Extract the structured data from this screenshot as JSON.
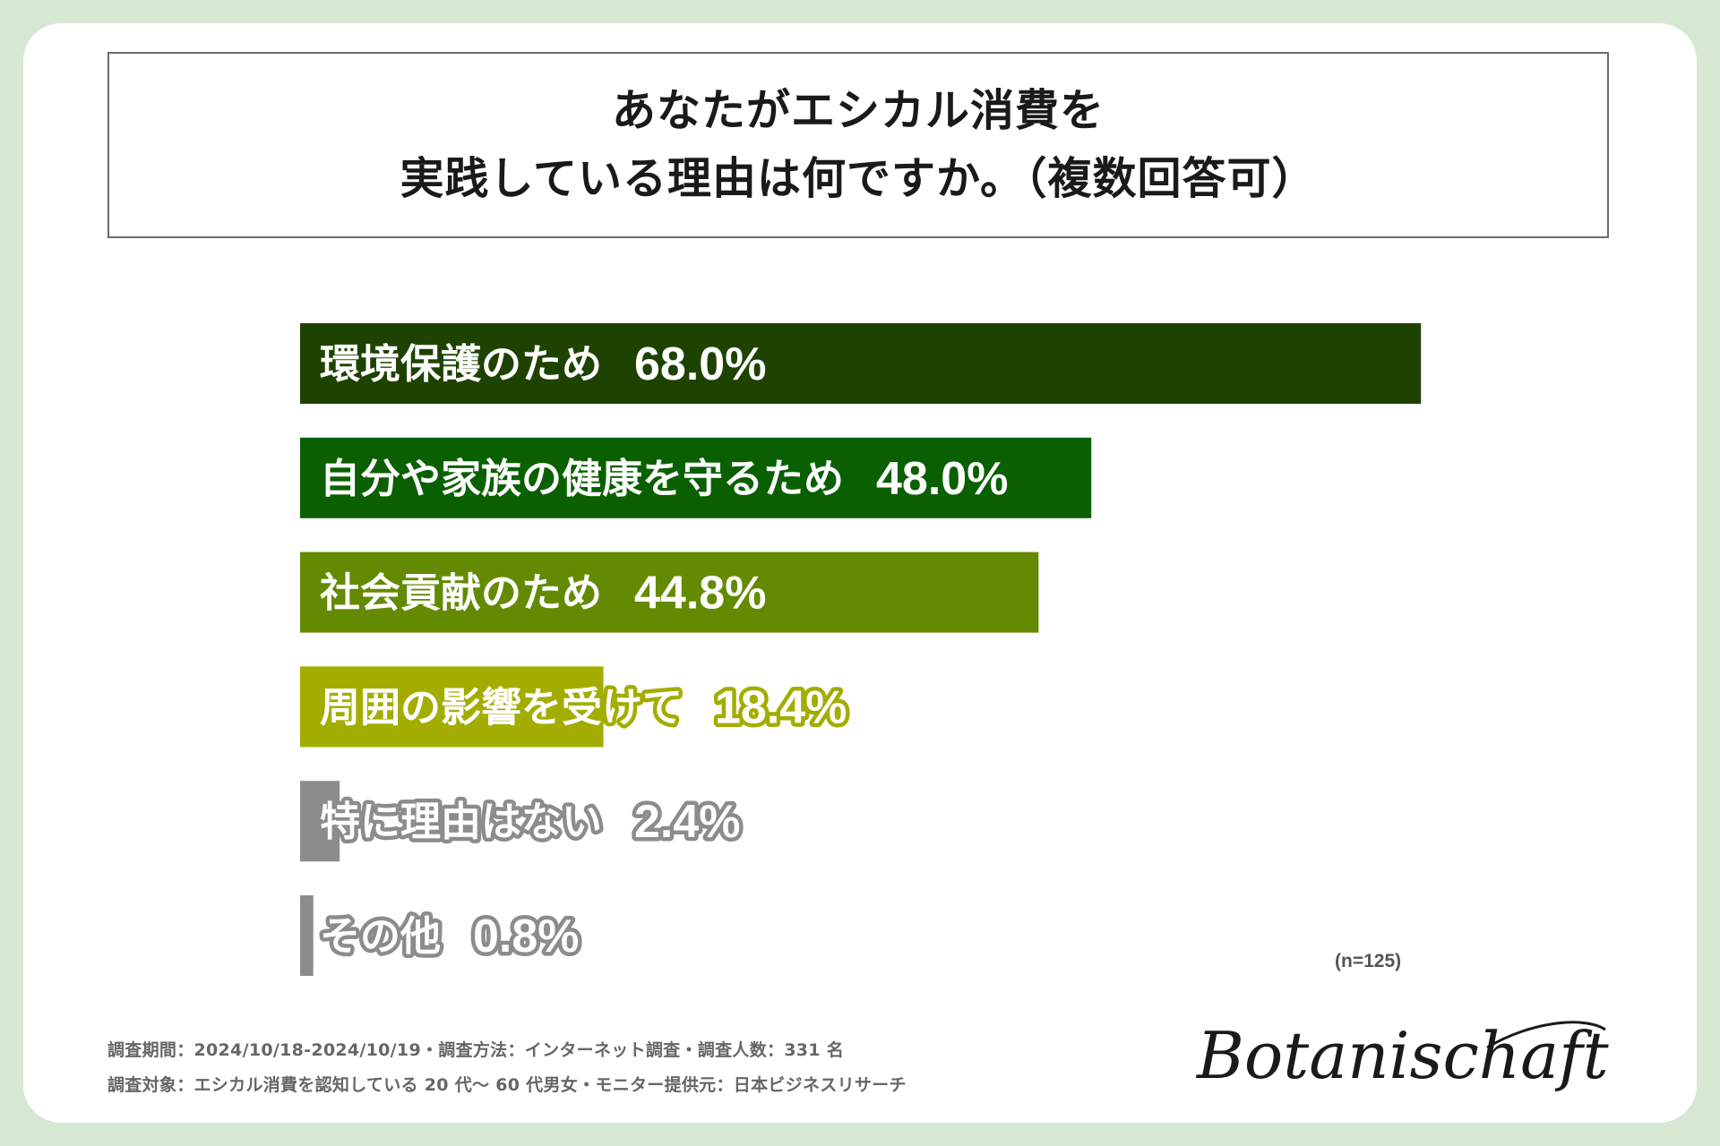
{
  "title_lines": [
    "あなたがエシカル消費を",
    "実践している理由は何ですか。（複数回答可）"
  ],
  "sample_note": "(n=125)",
  "footnotes": [
    "調査期間：2024/10/18-2024/10/19・調査方法：インターネット調査・調査人数：331 名",
    "調査対象：エシカル消費を認知している 20 代〜 60 代男女・モニター提供元：日本ビジネスリサーチ"
  ],
  "logo_text": "Botanischaft",
  "chart_data": {
    "type": "bar",
    "orientation": "horizontal",
    "title": "あなたがエシカル消費を 実践している理由は何ですか。（複数回答可）",
    "xlabel": "",
    "ylabel": "",
    "xlim": [
      0,
      100
    ],
    "grid": false,
    "categories": [
      "環境保護のため",
      "自分や家族の健康を守るため",
      "社会貢献のため",
      "周囲の影響を受けて",
      "特に理由はない",
      "その他"
    ],
    "values": [
      68.0,
      48.0,
      44.8,
      18.4,
      2.4,
      0.8
    ],
    "value_labels": [
      "68.0%",
      "48.0%",
      "44.8%",
      "18.4%",
      "2.4%",
      "0.8%"
    ],
    "colors": [
      "#1e4300",
      "#0a6000",
      "#638a00",
      "#a3ad00",
      "#8c8c8c",
      "#8c8c8c"
    ]
  }
}
